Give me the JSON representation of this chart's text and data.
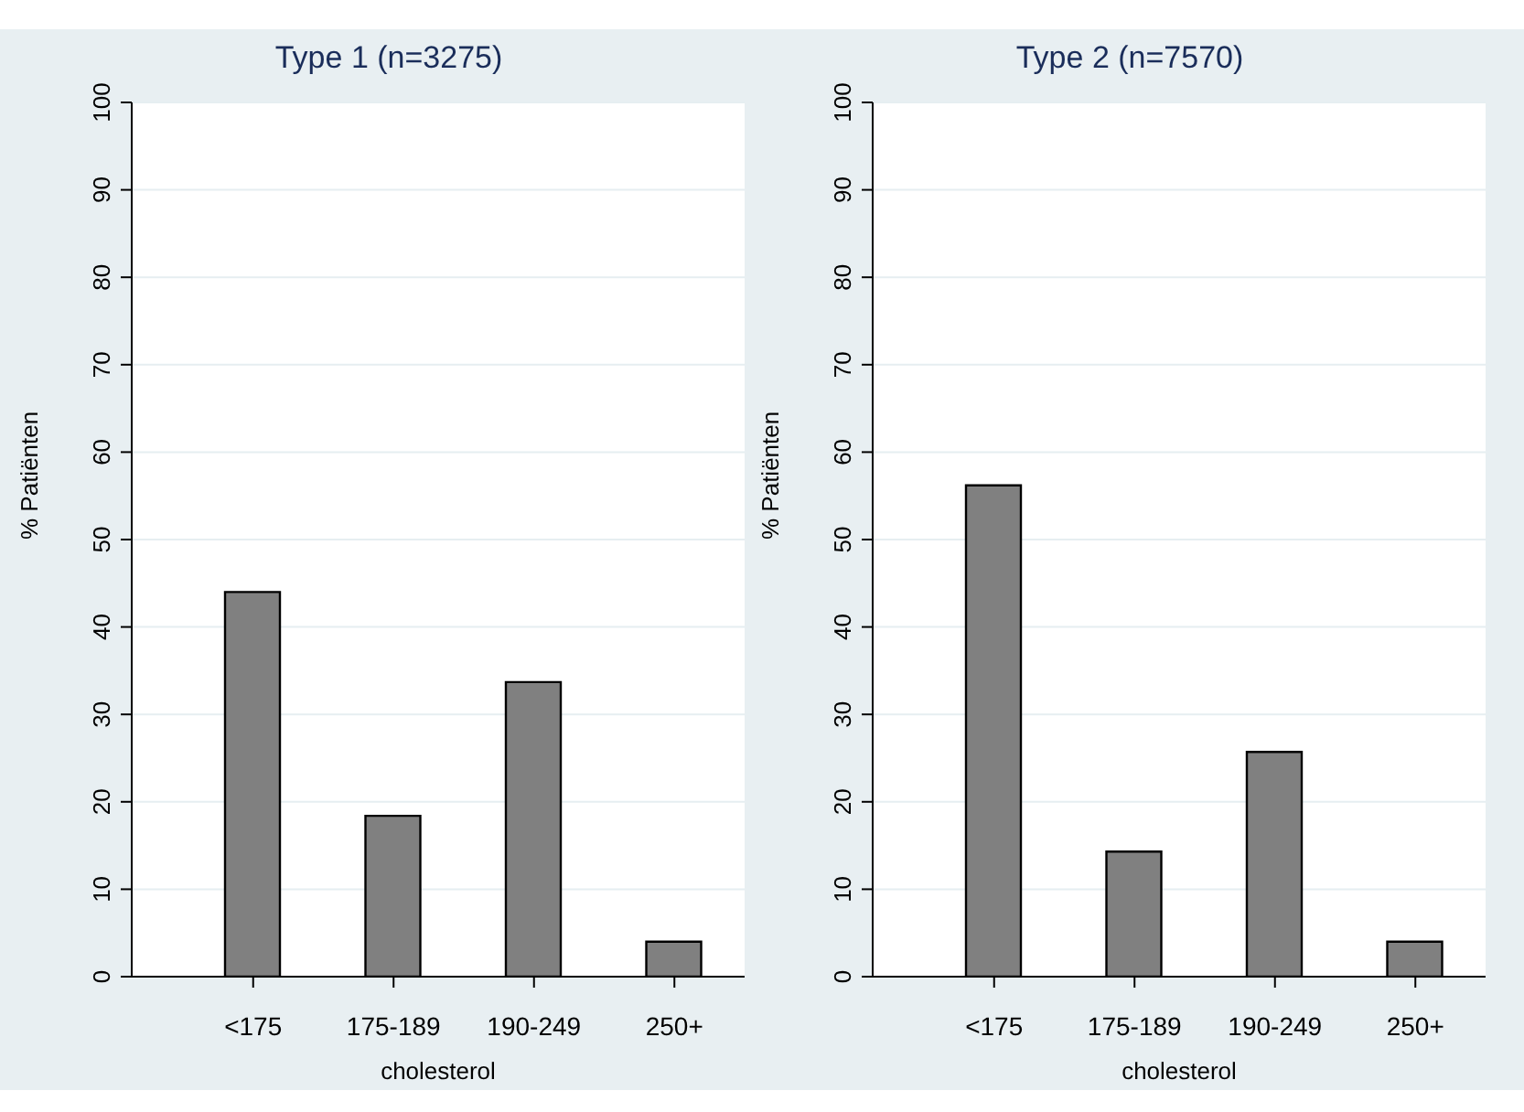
{
  "chart_data": [
    {
      "type": "bar",
      "title": "Type 1 (n=3275)",
      "xlabel": "cholesterol",
      "ylabel": "% Patiënten",
      "categories": [
        "<175",
        "175-189",
        "190-249",
        "250+"
      ],
      "values": [
        44,
        18.4,
        33.7,
        4
      ],
      "color": "#808080",
      "ylim": [
        0,
        100
      ],
      "yticks": [
        0,
        10,
        20,
        30,
        40,
        50,
        60,
        70,
        80,
        90,
        100
      ],
      "grid": "y"
    },
    {
      "type": "bar",
      "title": "Type 2 (n=7570)",
      "xlabel": "cholesterol",
      "ylabel": "% Patiënten",
      "categories": [
        "<175",
        "175-189",
        "190-249",
        "250+"
      ],
      "values": [
        56.2,
        14.3,
        25.7,
        4
      ],
      "color": "#808080",
      "ylim": [
        0,
        100
      ],
      "yticks": [
        0,
        10,
        20,
        30,
        40,
        50,
        60,
        70,
        80,
        90,
        100
      ],
      "grid": "y"
    }
  ]
}
